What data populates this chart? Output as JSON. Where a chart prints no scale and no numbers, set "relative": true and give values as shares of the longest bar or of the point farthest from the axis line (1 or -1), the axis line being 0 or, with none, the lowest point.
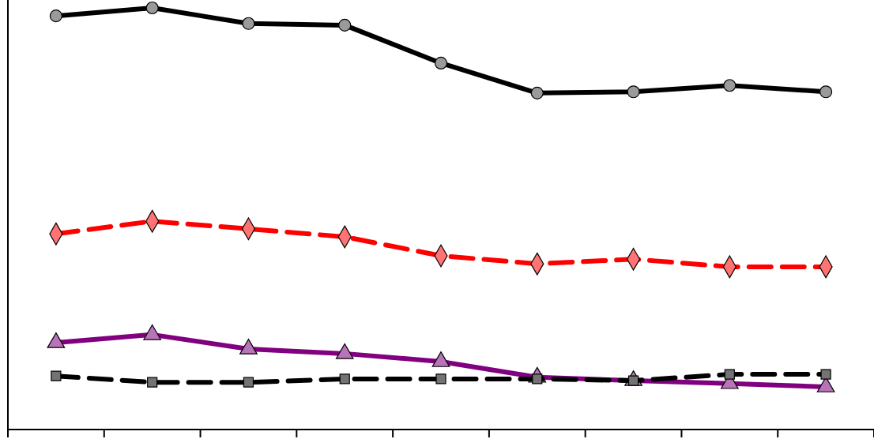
{
  "chart_data": {
    "type": "line",
    "relative": true,
    "categories": [
      null,
      null,
      null,
      null,
      null,
      null,
      null,
      null,
      null
    ],
    "series": [
      {
        "color": "#000000",
        "marker": "circle",
        "line_style": "solid",
        "values": [
          0.981,
          1,
          0.963,
          0.959,
          0.869,
          0.798,
          0.801,
          0.816,
          0.801
        ]
      },
      {
        "color": "#ff0000",
        "marker": "diamond",
        "line_style": "dashed",
        "values": [
          0.464,
          0.494,
          0.476,
          0.457,
          0.412,
          0.393,
          0.404,
          0.386,
          0.386
        ]
      },
      {
        "color": "#800080",
        "marker": "triangle",
        "line_style": "solid",
        "values": [
          0.206,
          0.225,
          0.191,
          0.18,
          0.161,
          0.124,
          0.116,
          0.109,
          0.101
        ]
      },
      {
        "color": "#000000",
        "marker": "square",
        "line_style": "dashed",
        "values": [
          0.127,
          0.112,
          0.112,
          0.12,
          0.12,
          0.12,
          0.116,
          0.131,
          0.131
        ]
      }
    ]
  }
}
